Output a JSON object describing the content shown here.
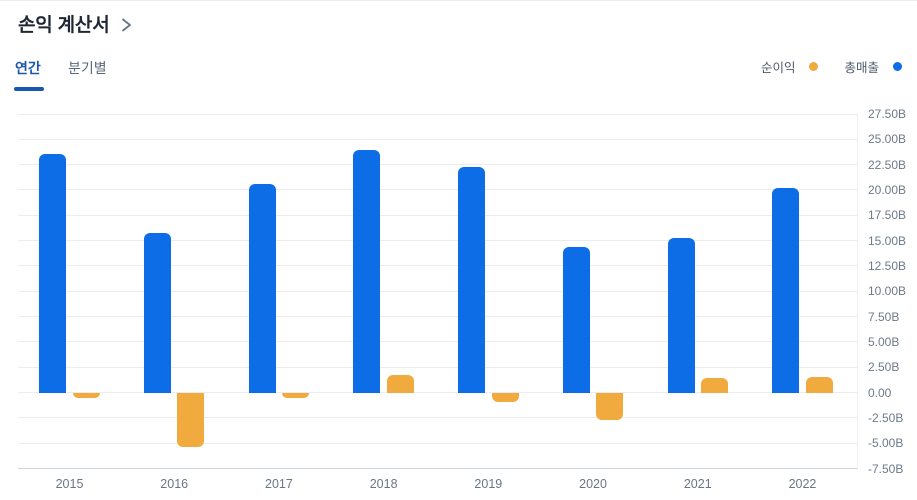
{
  "header": {
    "title": "손익 계산서",
    "chevron_icon": "chevron-right"
  },
  "tabs": {
    "annual": "연간",
    "quarterly": "분기별"
  },
  "legend": {
    "net_income": "순이익",
    "revenue": "총매출"
  },
  "colors": {
    "revenue": "#0c6de7",
    "net_income": "#f0aa3d",
    "tab_active": "#1a58ad",
    "tab_inactive": "#5a6879",
    "title_text": "#1f2733",
    "axis_label": "#6d7a8a",
    "gridline": "#eaecef",
    "axis_line": "#ccd5df"
  },
  "chart_data": {
    "type": "bar",
    "title": "손익 계산서 (연간)",
    "categories": [
      "2015",
      "2016",
      "2017",
      "2018",
      "2019",
      "2020",
      "2021",
      "2022"
    ],
    "series": [
      {
        "name": "총매출",
        "color": "#0c6de7",
        "values": [
          23.6,
          15.8,
          20.6,
          23.9,
          22.3,
          14.4,
          15.3,
          20.2
        ]
      },
      {
        "name": "순이익",
        "color": "#f0aa3d",
        "values": [
          -0.5,
          -5.4,
          -0.5,
          1.7,
          -0.9,
          -2.7,
          1.4,
          1.5
        ]
      }
    ],
    "unit": "B",
    "ylim": [
      -7.5,
      27.5
    ],
    "yticks": [
      {
        "value": 27.5,
        "label": "27.50B"
      },
      {
        "value": 25,
        "label": "25.00B"
      },
      {
        "value": 22.5,
        "label": "22.50B"
      },
      {
        "value": 20,
        "label": "20.00B"
      },
      {
        "value": 17.5,
        "label": "17.50B"
      },
      {
        "value": 15,
        "label": "15.00B"
      },
      {
        "value": 12.5,
        "label": "12.50B"
      },
      {
        "value": 10,
        "label": "10.00B"
      },
      {
        "value": 7.5,
        "label": "7.50B"
      },
      {
        "value": 5,
        "label": "5.00B"
      },
      {
        "value": 2.5,
        "label": "2.50B"
      },
      {
        "value": 0,
        "label": "0.00"
      },
      {
        "value": -2.5,
        "label": "-2.50B"
      },
      {
        "value": -5,
        "label": "-5.00B"
      },
      {
        "value": -7.5,
        "label": "-7.50B"
      }
    ],
    "grid": true,
    "legend_position": "top-right"
  }
}
